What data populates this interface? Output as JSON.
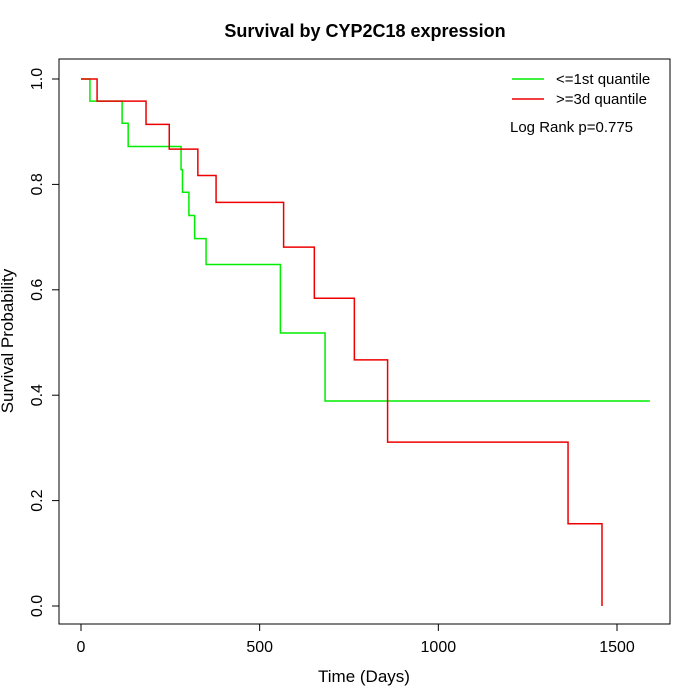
{
  "chart_data": {
    "type": "line",
    "title": "Survival by CYP2C18 expression",
    "xlabel": "Time (Days)",
    "ylabel": "Survival Probability",
    "xlim": [
      0,
      1600
    ],
    "ylim": [
      0,
      1.0
    ],
    "x_ticks": [
      0,
      500,
      1000,
      1500
    ],
    "y_ticks": [
      0.0,
      0.2,
      0.4,
      0.6,
      0.8,
      1.0
    ],
    "x_tick_labels": [
      "0",
      "500",
      "1000",
      "1500"
    ],
    "y_tick_labels": [
      "0.0",
      "0.2",
      "0.4",
      "0.6",
      "0.8",
      "1.0"
    ],
    "grid": false,
    "legend_position": "top-right",
    "annotation": "Log Rank p=0.775",
    "series": [
      {
        "name": "<=1st quantile",
        "color": "#00ee00",
        "step": true,
        "x": [
          0,
          25,
          115,
          132,
          280,
          284,
          302,
          318,
          350,
          558,
          683,
          1592
        ],
        "y": [
          1.0,
          0.958,
          0.916,
          0.872,
          0.828,
          0.785,
          0.741,
          0.697,
          0.648,
          0.518,
          0.389,
          0.389
        ]
      },
      {
        "name": ">=3d quantile",
        "color": "#ee0000",
        "step": true,
        "x": [
          0,
          45,
          182,
          247,
          327,
          378,
          567,
          653,
          765,
          858,
          1363,
          1458,
          1458
        ],
        "y": [
          1.0,
          0.958,
          0.914,
          0.867,
          0.817,
          0.766,
          0.681,
          0.584,
          0.467,
          0.311,
          0.156,
          0.156,
          0.0
        ]
      }
    ]
  }
}
